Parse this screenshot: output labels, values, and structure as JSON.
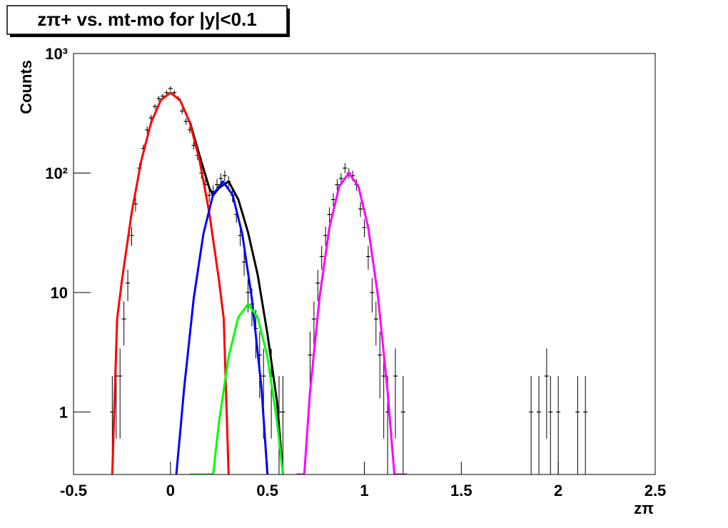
{
  "chart_data": {
    "type": "scatter",
    "title": "zπ+ vs. mt-mo for |y|<0.1",
    "x_label": "zπ",
    "y_label": "Counts",
    "log_y": true,
    "xlim": [
      -0.5,
      2.5
    ],
    "xticks": [
      -0.5,
      0,
      0.5,
      1,
      1.5,
      2,
      2.5
    ],
    "ylim": [
      0.3,
      1000
    ],
    "yticks": [
      1,
      10,
      {
        "value": 100,
        "label": "10²"
      },
      {
        "value": 1000,
        "label": "10³"
      }
    ],
    "points": {
      "color": "#000000",
      "x": [
        -0.3,
        -0.28,
        -0.26,
        -0.24,
        -0.22,
        -0.2,
        -0.18,
        -0.16,
        -0.14,
        -0.12,
        -0.1,
        -0.08,
        -0.06,
        -0.04,
        -0.02,
        0,
        0.02,
        0.04,
        0.06,
        0.08,
        0.1,
        0.12,
        0.14,
        0.16,
        0.18,
        0.2,
        0.22,
        0.24,
        0.26,
        0.28,
        0.3,
        0.32,
        0.34,
        0.36,
        0.38,
        0.4,
        0.42,
        0.44,
        0.46,
        0.48,
        0.52,
        0.56,
        0.58,
        0.72,
        0.74,
        0.76,
        0.78,
        0.8,
        0.82,
        0.84,
        0.86,
        0.88,
        0.9,
        0.92,
        0.94,
        0.96,
        0.98,
        1.0,
        1.02,
        1.04,
        1.06,
        1.08,
        1.1,
        1.12,
        1.16,
        1.2,
        1.86,
        1.9,
        1.94,
        1.96,
        2.0,
        2.1,
        2.14
      ],
      "values": [
        1,
        2,
        2,
        6,
        12,
        30,
        55,
        110,
        160,
        230,
        290,
        360,
        420,
        440,
        470,
        510,
        470,
        420,
        330,
        270,
        230,
        170,
        140,
        100,
        80,
        65,
        70,
        80,
        90,
        95,
        85,
        65,
        45,
        30,
        18,
        10,
        8,
        5,
        3,
        2,
        2,
        1,
        1,
        3,
        6,
        12,
        20,
        30,
        45,
        60,
        80,
        90,
        110,
        100,
        95,
        80,
        50,
        35,
        20,
        10,
        6,
        3,
        2,
        1,
        2,
        1,
        1,
        1,
        2,
        1,
        1,
        1,
        1
      ],
      "errors": [
        1,
        1.4,
        1.4,
        2.4,
        3.5,
        5.5,
        7.4,
        10.5,
        12.6,
        15.2,
        17,
        19,
        20.5,
        21,
        21.7,
        22.6,
        21.7,
        20.5,
        18.2,
        16.4,
        15.2,
        13,
        11.8,
        10,
        8.9,
        8.1,
        8.4,
        8.9,
        9.5,
        9.7,
        9.2,
        8.1,
        6.7,
        5.5,
        4.2,
        3.2,
        2.8,
        2.2,
        1.7,
        1.4,
        1.4,
        1,
        1,
        1.7,
        2.4,
        3.5,
        4.5,
        5.5,
        6.7,
        7.7,
        8.9,
        9.5,
        10.5,
        10,
        9.7,
        8.9,
        7.1,
        5.9,
        4.5,
        3.2,
        2.4,
        1.7,
        1.4,
        1,
        1.4,
        1,
        1,
        1,
        1.4,
        1,
        1,
        1,
        1
      ]
    },
    "fits": [
      {
        "color": "#000000",
        "x": [
          0.1,
          0.15,
          0.2,
          0.22,
          0.25,
          0.3,
          0.35,
          0.4,
          0.45,
          0.5,
          0.55,
          0.58
        ],
        "values": [
          269,
          140,
          75,
          65,
          75,
          85,
          60,
          32,
          14,
          4.5,
          1.2,
          0.3
        ]
      },
      {
        "color": "#ff0000",
        "x": [
          -0.3,
          -0.275,
          -0.25,
          -0.2,
          -0.15,
          -0.1,
          -0.05,
          0,
          0.05,
          0.1,
          0.15,
          0.2,
          0.25,
          0.275,
          0.3
        ],
        "values": [
          0.3,
          6,
          12.7,
          46.6,
          128,
          264,
          407,
          470,
          407,
          264,
          128,
          46.6,
          12.7,
          6,
          0.3
        ]
      },
      {
        "color": "#0000ff",
        "x": [
          0.03,
          0.05,
          0.07,
          0.12,
          0.17,
          0.22,
          0.27,
          0.32,
          0.37,
          0.42,
          0.47,
          0.5
        ],
        "values": [
          0.3,
          0.67,
          1.56,
          8.9,
          31,
          66,
          85,
          66,
          31,
          8.9,
          1.56,
          0.3
        ]
      },
      {
        "color": "#00ff00",
        "x": [
          0.1,
          0.22,
          0.25,
          0.3,
          0.35,
          0.4,
          0.45,
          0.5,
          0.55,
          0.58
        ],
        "values": [
          0.3,
          0.3,
          0.82,
          2.9,
          6.2,
          8,
          6.2,
          2.9,
          0.82,
          0.3
        ]
      },
      {
        "color": "#ff00ff",
        "x": [
          0.65,
          0.69,
          0.72,
          0.77,
          0.82,
          0.87,
          0.92,
          0.97,
          1.02,
          1.07,
          1.12,
          1.155,
          1.22
        ],
        "values": [
          0.3,
          0.3,
          1.48,
          9.4,
          35,
          77,
          100,
          77,
          35,
          9.4,
          1.48,
          0.3,
          0.3
        ]
      }
    ]
  }
}
